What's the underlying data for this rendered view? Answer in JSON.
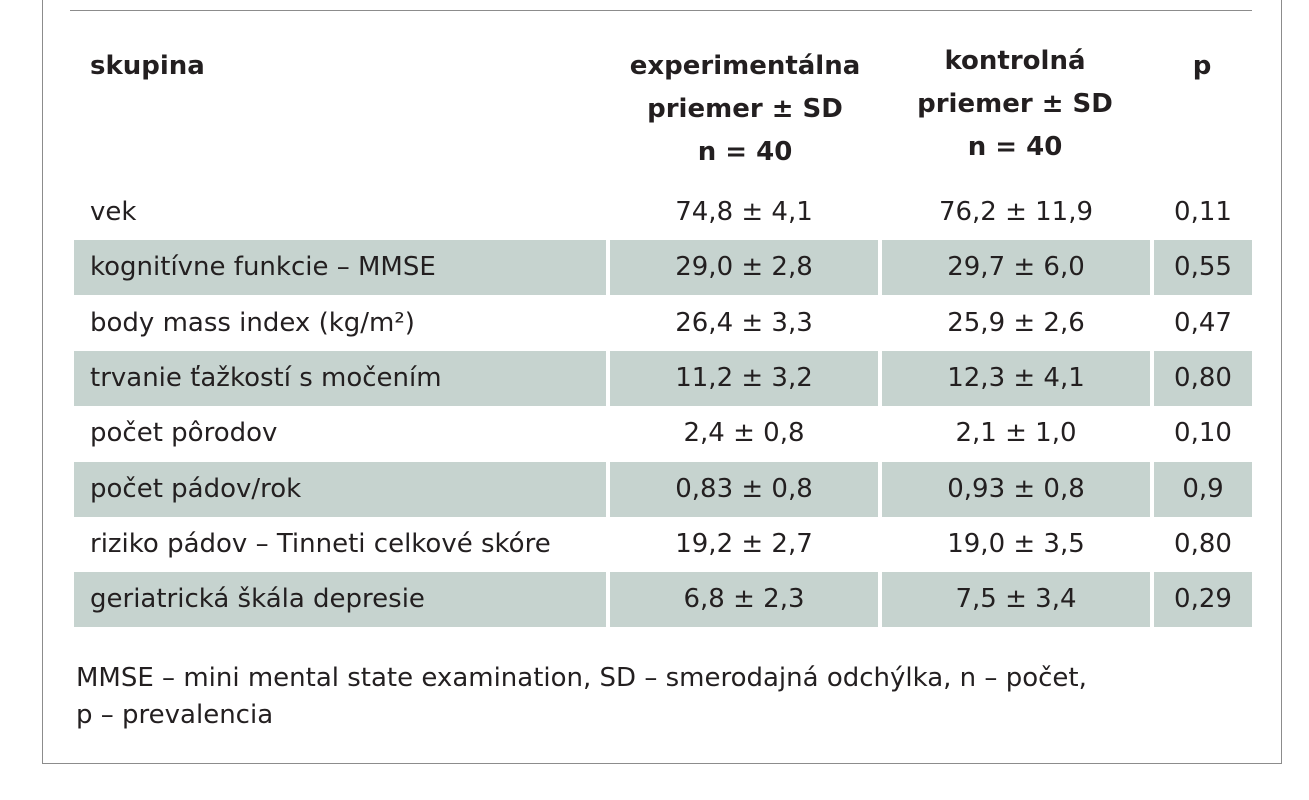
{
  "table": {
    "headers": {
      "group": "skupina",
      "experimental": [
        "experimentálna",
        "priemer ± SD",
        "n = 40"
      ],
      "control": [
        "kontrolná",
        "priemer ± SD",
        "n = 40"
      ],
      "p": "p"
    },
    "rows": [
      {
        "group": "vek",
        "experimental": "74,8 ± 4,1",
        "control": "76,2 ± 11,9",
        "p": "0,11",
        "shaded": false
      },
      {
        "group": "kognitívne funkcie – MMSE",
        "experimental": "29,0 ± 2,8",
        "control": "29,7 ± 6,0",
        "p": "0,55",
        "shaded": true
      },
      {
        "group": "body mass index (kg/m²)",
        "experimental": "26,4 ± 3,3",
        "control": "25,9 ± 2,6",
        "p": "0,47",
        "shaded": false
      },
      {
        "group": "trvanie ťažkostí s močením",
        "experimental": "11,2 ± 3,2",
        "control": "12,3 ± 4,1",
        "p": "0,80",
        "shaded": true
      },
      {
        "group": "počet pôrodov",
        "experimental": "2,4 ± 0,8",
        "control": "2,1 ± 1,0",
        "p": "0,10",
        "shaded": false
      },
      {
        "group": "počet pádov/rok",
        "experimental": "0,83 ± 0,8",
        "control": "0,93 ± 0,8",
        "p": "0,9",
        "shaded": true
      },
      {
        "group": "riziko pádov – Tinneti celkové skóre",
        "experimental": "19,2 ± 2,7",
        "control": "19,0 ± 3,5",
        "p": "0,80",
        "shaded": false
      },
      {
        "group": "geriatrická škála depresie",
        "experimental": "6,8 ± 2,3",
        "control": "7,5 ± 3,4",
        "p": "0,29",
        "shaded": true
      }
    ],
    "shade_color": "#c6d3cf"
  },
  "footnote": {
    "line1": "MMSE – mini mental state examination, SD – smerodajná odchýlka, n – počet,",
    "line2": "p – prevalencia"
  }
}
